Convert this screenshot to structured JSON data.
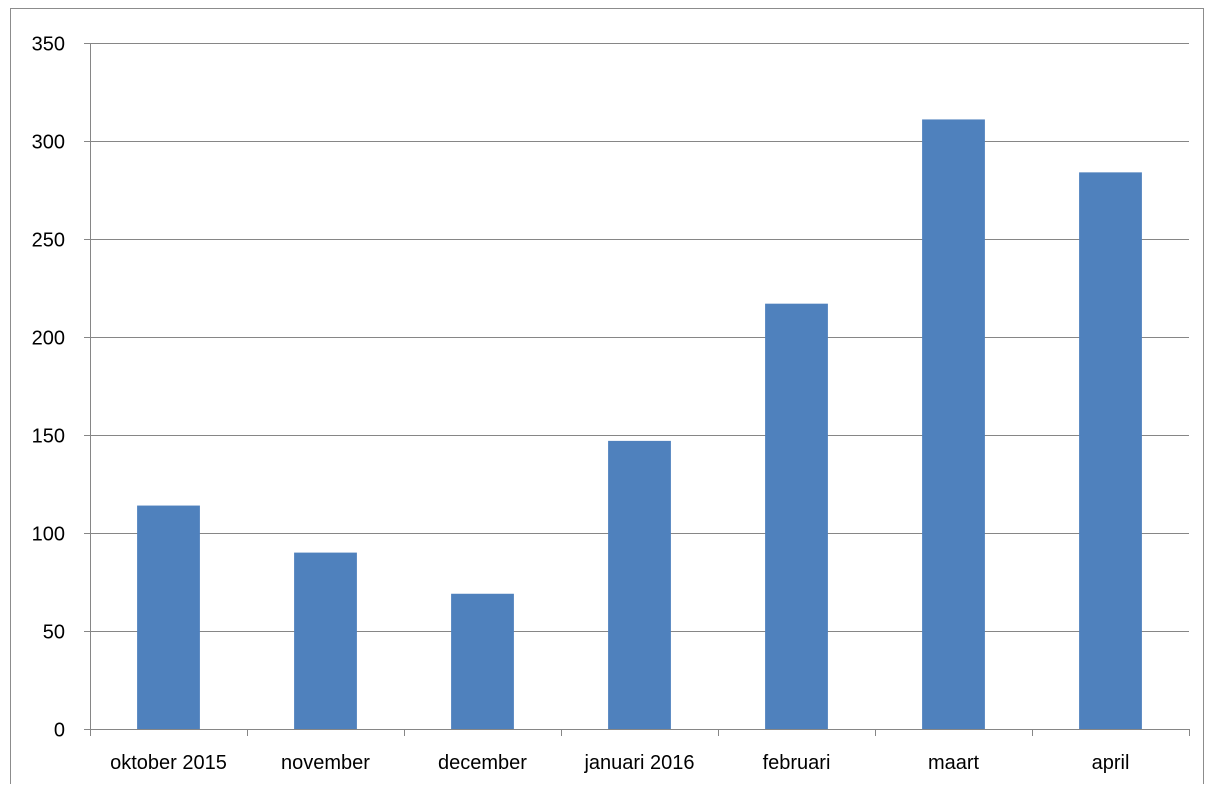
{
  "chart_data": {
    "type": "bar",
    "title": "",
    "xlabel": "",
    "ylabel": "",
    "categories": [
      "oktober 2015",
      "november",
      "december",
      "januari 2016",
      "februari",
      "maart",
      "april"
    ],
    "values": [
      114,
      90,
      69,
      147,
      217,
      311,
      284
    ],
    "ylim": [
      0,
      350
    ],
    "yticks": [
      0,
      50,
      100,
      150,
      200,
      250,
      300,
      350
    ],
    "grid": true,
    "legend": "none",
    "colors": {
      "bar": "#4F81BD",
      "grid": "#868686",
      "axis": "#868686"
    }
  }
}
